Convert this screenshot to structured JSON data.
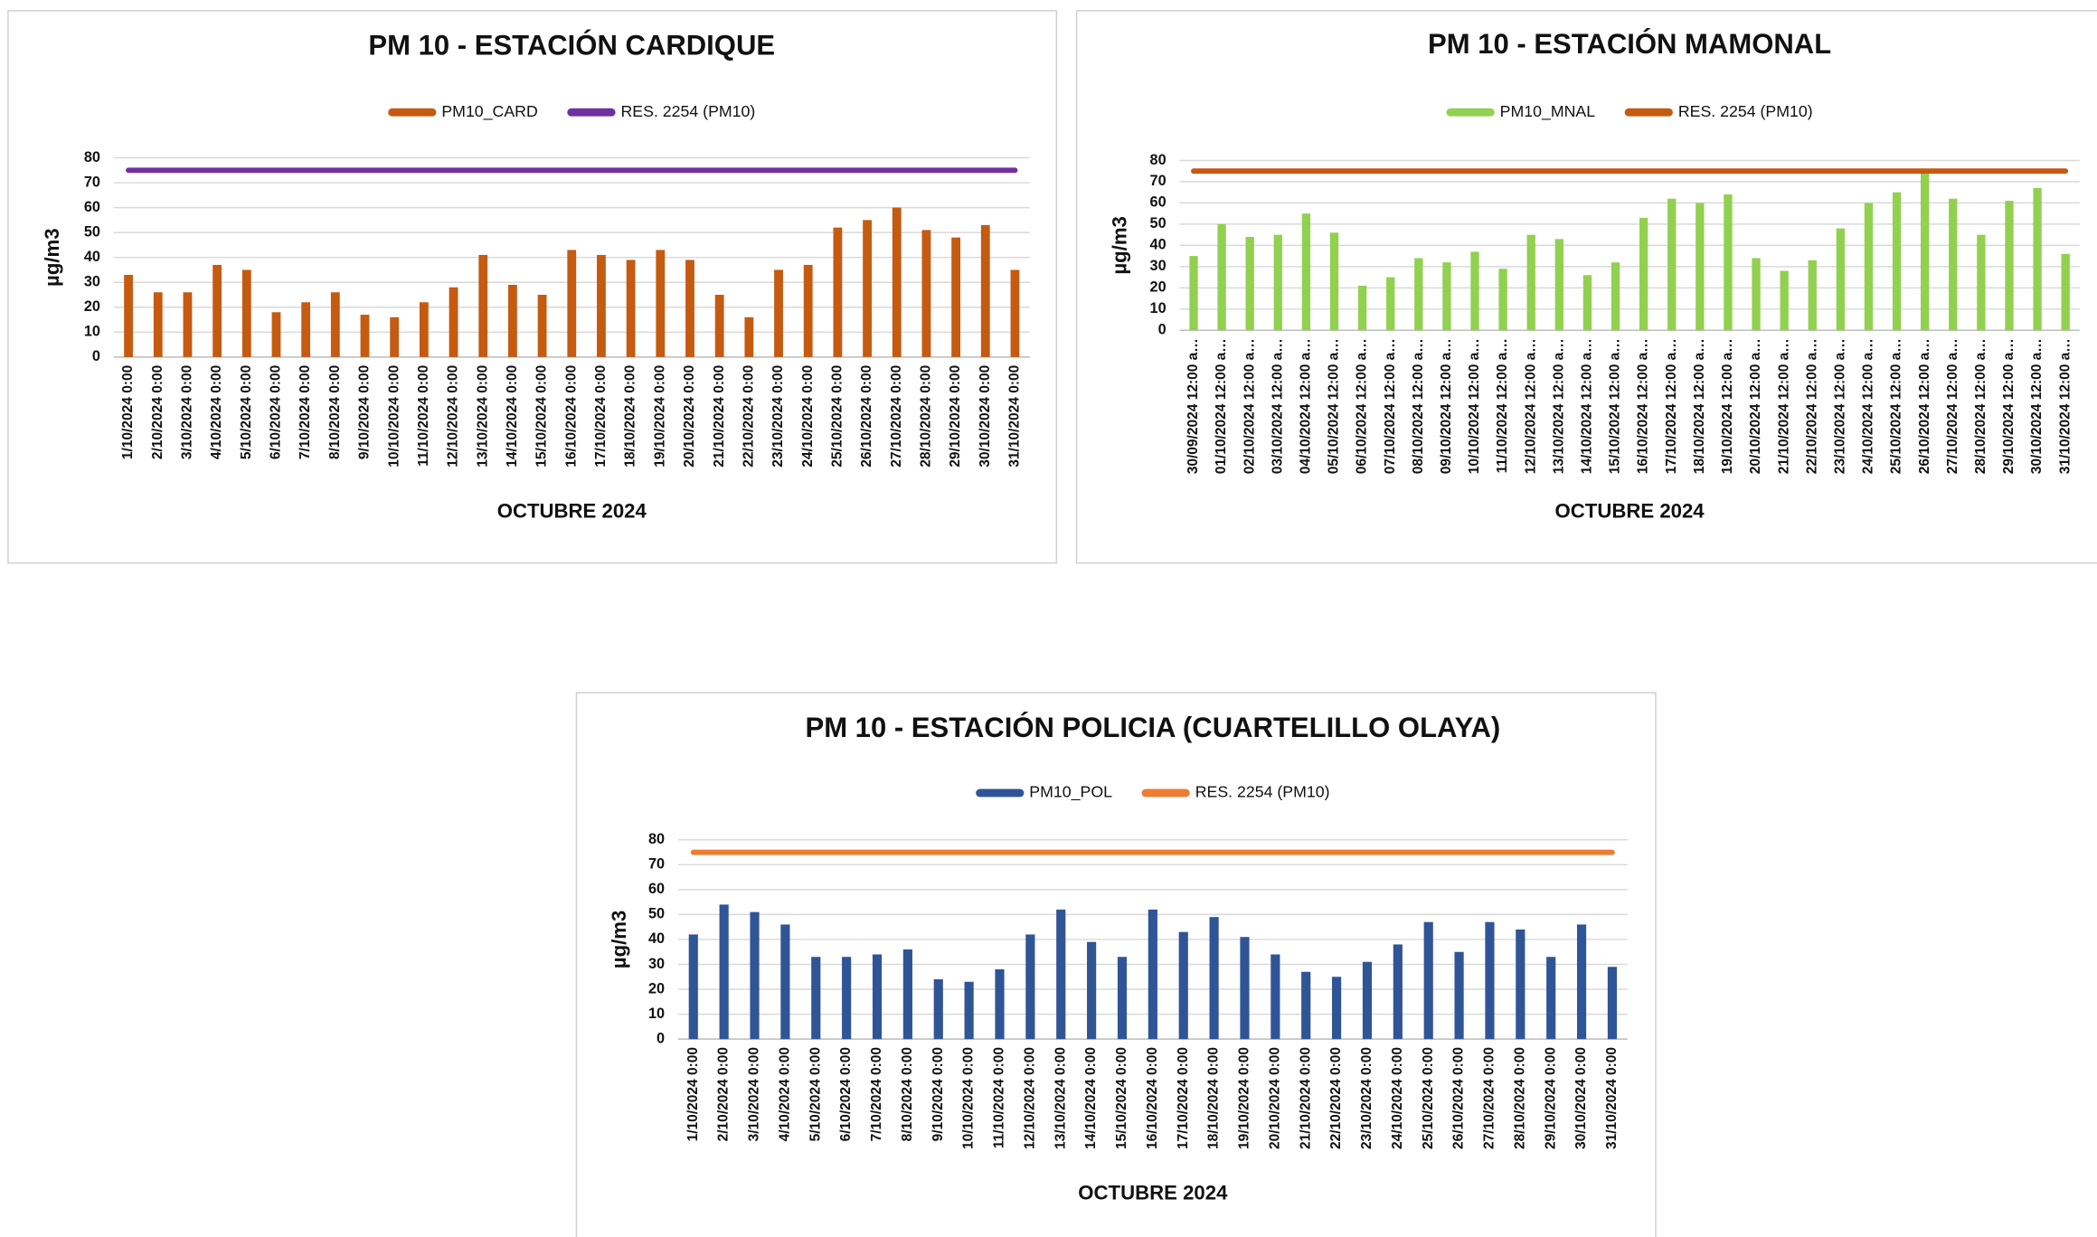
{
  "chart_data": [
    {
      "type": "bar",
      "title": "PM 10 - ESTACIÓN CARDIQUE",
      "xlabel": "OCTUBRE 2024",
      "ylabel": "µg/m3",
      "categories": [
        "1/10/2024 0:00",
        "2/10/2024 0:00",
        "3/10/2024 0:00",
        "4/10/2024 0:00",
        "5/10/2024 0:00",
        "6/10/2024 0:00",
        "7/10/2024 0:00",
        "8/10/2024 0:00",
        "9/10/2024 0:00",
        "10/10/2024 0:00",
        "11/10/2024 0:00",
        "12/10/2024 0:00",
        "13/10/2024 0:00",
        "14/10/2024 0:00",
        "15/10/2024 0:00",
        "16/10/2024 0:00",
        "17/10/2024 0:00",
        "18/10/2024 0:00",
        "19/10/2024 0:00",
        "20/10/2024 0:00",
        "21/10/2024 0:00",
        "22/10/2024 0:00",
        "23/10/2024 0:00",
        "24/10/2024 0:00",
        "25/10/2024 0:00",
        "26/10/2024 0:00",
        "27/10/2024 0:00",
        "28/10/2024 0:00",
        "29/10/2024 0:00",
        "30/10/2024 0:00",
        "31/10/2024 0:00"
      ],
      "series": [
        {
          "name": "PM10_CARD",
          "type": "bar",
          "color": "#c55a11",
          "values": [
            33,
            26,
            26,
            37,
            35,
            18,
            22,
            26,
            17,
            16,
            22,
            28,
            41,
            29,
            25,
            43,
            41,
            39,
            43,
            39,
            25,
            16,
            35,
            37,
            52,
            55,
            60,
            51,
            48,
            53,
            35
          ]
        },
        {
          "name": "RES. 2254 (PM10)",
          "type": "line",
          "color": "#7030a0",
          "values": [
            75,
            75,
            75,
            75,
            75,
            75,
            75,
            75,
            75,
            75,
            75,
            75,
            75,
            75,
            75,
            75,
            75,
            75,
            75,
            75,
            75,
            75,
            75,
            75,
            75,
            75,
            75,
            75,
            75,
            75,
            75
          ]
        }
      ],
      "ylim": [
        0,
        80
      ],
      "yticks": [
        0,
        10,
        20,
        30,
        40,
        50,
        60,
        70,
        80
      ],
      "grid": true
    },
    {
      "type": "bar",
      "title": "PM 10 - ESTACIÓN MAMONAL",
      "xlabel": "OCTUBRE 2024",
      "ylabel": "µg/m3",
      "categories": [
        "30/09/2024 12:00 a…",
        "01/10/2024 12:00 a…",
        "02/10/2024 12:00 a…",
        "03/10/2024 12:00 a…",
        "04/10/2024 12:00 a…",
        "05/10/2024 12:00 a…",
        "06/10/2024 12:00 a…",
        "07/10/2024 12:00 a…",
        "08/10/2024 12:00 a…",
        "09/10/2024 12:00 a…",
        "10/10/2024 12:00 a…",
        "11/10/2024 12:00 a…",
        "12/10/2024 12:00 a…",
        "13/10/2024 12:00 a…",
        "14/10/2024 12:00 a…",
        "15/10/2024 12:00 a…",
        "16/10/2024 12:00 a…",
        "17/10/2024 12:00 a…",
        "18/10/2024 12:00 a…",
        "19/10/2024 12:00 a…",
        "20/10/2024 12:00 a…",
        "21/10/2024 12:00 a…",
        "22/10/2024 12:00 a…",
        "23/10/2024 12:00 a…",
        "24/10/2024 12:00 a…",
        "25/10/2024 12:00 a…",
        "26/10/2024 12:00 a…",
        "27/10/2024 12:00 a…",
        "28/10/2024 12:00 a…",
        "29/10/2024 12:00 a…",
        "30/10/2024 12:00 a…",
        "31/10/2024 12:00 a…"
      ],
      "series": [
        {
          "name": "PM10_MNAL",
          "type": "bar",
          "color": "#92d050",
          "values": [
            35,
            50,
            44,
            45,
            55,
            46,
            21,
            25,
            34,
            32,
            37,
            29,
            45,
            43,
            26,
            32,
            53,
            62,
            60,
            64,
            34,
            28,
            33,
            48,
            60,
            65,
            75,
            62,
            45,
            61,
            67,
            36
          ]
        },
        {
          "name": "RES. 2254 (PM10)",
          "type": "line",
          "color": "#c55a11",
          "values": [
            75,
            75,
            75,
            75,
            75,
            75,
            75,
            75,
            75,
            75,
            75,
            75,
            75,
            75,
            75,
            75,
            75,
            75,
            75,
            75,
            75,
            75,
            75,
            75,
            75,
            75,
            75,
            75,
            75,
            75,
            75,
            75
          ]
        }
      ],
      "ylim": [
        0,
        80
      ],
      "yticks": [
        0,
        10,
        20,
        30,
        40,
        50,
        60,
        70,
        80
      ],
      "grid": true
    },
    {
      "type": "bar",
      "title": "PM 10 - ESTACIÓN POLICIA (CUARTELILLO OLAYA)",
      "xlabel": "OCTUBRE 2024",
      "ylabel": "µg/m3",
      "categories": [
        "1/10/2024 0:00",
        "2/10/2024 0:00",
        "3/10/2024 0:00",
        "4/10/2024 0:00",
        "5/10/2024 0:00",
        "6/10/2024 0:00",
        "7/10/2024 0:00",
        "8/10/2024 0:00",
        "9/10/2024 0:00",
        "10/10/2024 0:00",
        "11/10/2024 0:00",
        "12/10/2024 0:00",
        "13/10/2024 0:00",
        "14/10/2024 0:00",
        "15/10/2024 0:00",
        "16/10/2024 0:00",
        "17/10/2024 0:00",
        "18/10/2024 0:00",
        "19/10/2024 0:00",
        "20/10/2024 0:00",
        "21/10/2024 0:00",
        "22/10/2024 0:00",
        "23/10/2024 0:00",
        "24/10/2024 0:00",
        "25/10/2024 0:00",
        "26/10/2024 0:00",
        "27/10/2024 0:00",
        "28/10/2024 0:00",
        "29/10/2024 0:00",
        "30/10/2024 0:00",
        "31/10/2024 0:00"
      ],
      "series": [
        {
          "name": "PM10_POL",
          "type": "bar",
          "color": "#2f5597",
          "values": [
            42,
            54,
            51,
            46,
            33,
            33,
            34,
            36,
            24,
            23,
            28,
            42,
            52,
            39,
            33,
            52,
            43,
            49,
            41,
            34,
            27,
            25,
            31,
            38,
            47,
            35,
            47,
            44,
            33,
            46,
            29
          ]
        },
        {
          "name": "RES. 2254 (PM10)",
          "type": "line",
          "color": "#ed7d31",
          "values": [
            75,
            75,
            75,
            75,
            75,
            75,
            75,
            75,
            75,
            75,
            75,
            75,
            75,
            75,
            75,
            75,
            75,
            75,
            75,
            75,
            75,
            75,
            75,
            75,
            75,
            75,
            75,
            75,
            75,
            75,
            75
          ]
        }
      ],
      "ylim": [
        0,
        80
      ],
      "yticks": [
        0,
        10,
        20,
        30,
        40,
        50,
        60,
        70,
        80
      ],
      "grid": true
    }
  ]
}
